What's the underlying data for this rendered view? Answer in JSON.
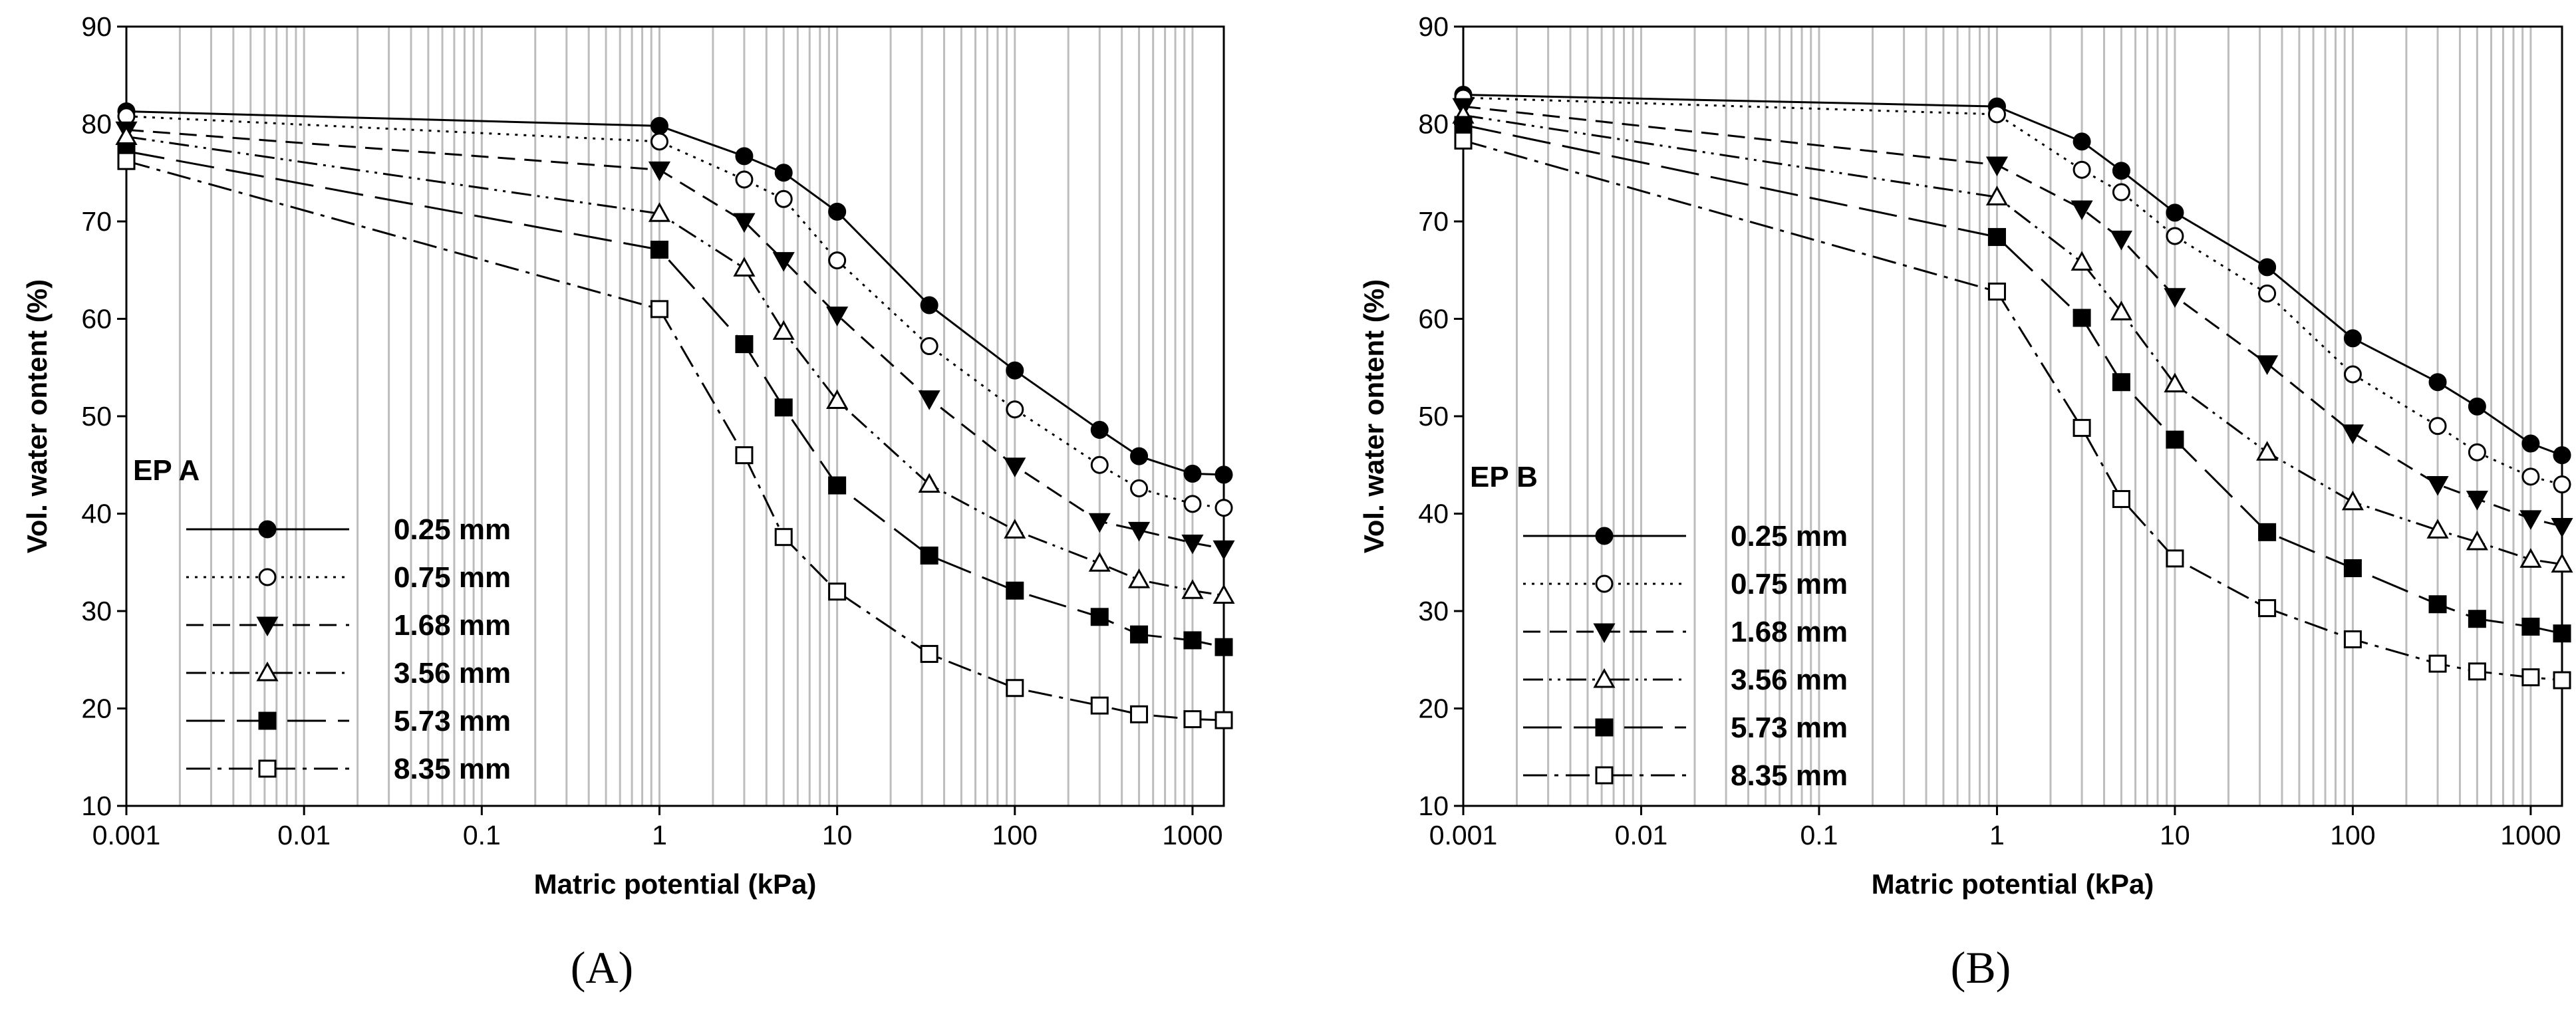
{
  "figure": {
    "panels": [
      "(A)",
      "(B)"
    ]
  },
  "chart_data": [
    {
      "type": "line",
      "panel_label": "(A)",
      "legend_title": "EP A",
      "xlabel": "Matric potential (kPa)",
      "ylabel": "Vol. water ontent (%)",
      "xscale": "log",
      "xlim": [
        0.001,
        1500
      ],
      "ylim": [
        10,
        90
      ],
      "xticks": [
        0.001,
        0.01,
        0.1,
        1,
        10,
        100,
        1000
      ],
      "xtick_labels": [
        "0.001",
        "0.01",
        "0.1",
        "1",
        "10",
        "100",
        "1000"
      ],
      "yticks": [
        10,
        20,
        30,
        40,
        50,
        60,
        70,
        80,
        90
      ],
      "ytick_labels": [
        "10",
        "20",
        "30",
        "40",
        "50",
        "60",
        "70",
        "80",
        "90"
      ],
      "grid": true,
      "legend_position": "bottom-left",
      "x": [
        0.001,
        1,
        3,
        5,
        10,
        33,
        100,
        300,
        500,
        1000,
        1500
      ],
      "series": [
        {
          "name": "0.25 mm",
          "marker": "circle",
          "filled": true,
          "dash": "solid",
          "values": [
            81.3,
            79.8,
            76.7,
            75.0,
            71.0,
            61.4,
            54.7,
            48.6,
            45.9,
            44.1,
            44.0
          ]
        },
        {
          "name": "0.75 mm",
          "marker": "circle",
          "filled": false,
          "dash": "dotted",
          "values": [
            80.8,
            78.2,
            74.3,
            72.3,
            66.0,
            57.2,
            50.7,
            45.0,
            42.6,
            41.0,
            40.6
          ]
        },
        {
          "name": "1.68 mm",
          "marker": "triangle-down",
          "filled": true,
          "dash": "dashed",
          "values": [
            79.4,
            75.3,
            70.0,
            66.0,
            60.4,
            51.8,
            44.9,
            39.2,
            38.3,
            37.0,
            36.4
          ]
        },
        {
          "name": "3.56 mm",
          "marker": "triangle-up",
          "filled": false,
          "dash": "dash-dot-dot",
          "values": [
            78.7,
            70.8,
            65.2,
            58.7,
            51.6,
            43.0,
            38.3,
            34.9,
            33.2,
            32.1,
            31.6
          ]
        },
        {
          "name": "5.73 mm",
          "marker": "square",
          "filled": true,
          "dash": "long-dash",
          "values": [
            77.2,
            67.1,
            57.4,
            50.9,
            42.9,
            35.7,
            32.1,
            29.4,
            27.6,
            27.0,
            26.3
          ]
        },
        {
          "name": "8.35 mm",
          "marker": "square",
          "filled": false,
          "dash": "dash-dot",
          "values": [
            76.2,
            61.0,
            46.0,
            37.6,
            32.0,
            25.6,
            22.1,
            20.3,
            19.4,
            18.9,
            18.8
          ]
        }
      ]
    },
    {
      "type": "line",
      "panel_label": "(B)",
      "legend_title": "EP B",
      "xlabel": "Matric potential (kPa)",
      "ylabel": "Vol. water ontent (%)",
      "xscale": "log",
      "xlim": [
        0.001,
        1500
      ],
      "ylim": [
        10,
        90
      ],
      "xticks": [
        0.001,
        0.01,
        0.1,
        1,
        10,
        100,
        1000
      ],
      "xtick_labels": [
        "0.001",
        "0.01",
        "0.1",
        "1",
        "10",
        "100",
        "1000"
      ],
      "yticks": [
        10,
        20,
        30,
        40,
        50,
        60,
        70,
        80,
        90
      ],
      "ytick_labels": [
        "10",
        "20",
        "30",
        "40",
        "50",
        "60",
        "70",
        "80",
        "90"
      ],
      "grid": true,
      "legend_position": "bottom-left",
      "x": [
        0.001,
        1,
        3,
        5,
        10,
        33,
        100,
        300,
        500,
        1000,
        1500
      ],
      "series": [
        {
          "name": "0.25 mm",
          "marker": "circle",
          "filled": true,
          "dash": "solid",
          "values": [
            83.0,
            81.8,
            78.2,
            75.2,
            70.9,
            65.3,
            58.0,
            53.5,
            51.0,
            47.2,
            46.0
          ]
        },
        {
          "name": "0.75 mm",
          "marker": "circle",
          "filled": false,
          "dash": "dotted",
          "values": [
            82.7,
            81.0,
            75.3,
            73.0,
            68.5,
            62.6,
            54.3,
            49.0,
            46.3,
            43.8,
            43.0
          ]
        },
        {
          "name": "1.68 mm",
          "marker": "triangle-down",
          "filled": true,
          "dash": "dashed",
          "values": [
            81.8,
            75.8,
            71.3,
            68.2,
            62.3,
            55.4,
            48.3,
            43.0,
            41.5,
            39.5,
            38.7
          ]
        },
        {
          "name": "3.56 mm",
          "marker": "triangle-up",
          "filled": false,
          "dash": "dash-dot-dot",
          "values": [
            80.9,
            72.5,
            65.8,
            60.7,
            53.3,
            46.3,
            41.2,
            38.3,
            37.1,
            35.3,
            34.8
          ]
        },
        {
          "name": "5.73 mm",
          "marker": "square",
          "filled": true,
          "dash": "long-dash",
          "values": [
            79.9,
            68.4,
            60.1,
            53.5,
            47.6,
            38.1,
            34.4,
            30.7,
            29.2,
            28.4,
            27.7
          ]
        },
        {
          "name": "8.35 mm",
          "marker": "square",
          "filled": false,
          "dash": "dash-dot",
          "values": [
            78.3,
            62.8,
            48.8,
            41.5,
            35.4,
            30.3,
            27.1,
            24.6,
            23.8,
            23.2,
            22.9
          ]
        }
      ]
    }
  ]
}
